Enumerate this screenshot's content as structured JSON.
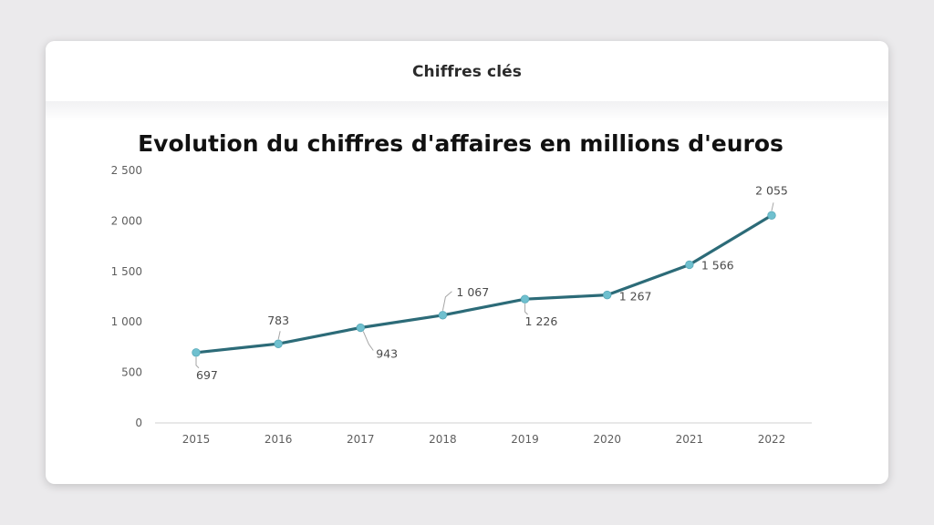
{
  "header": {
    "title": "Chiffres clés"
  },
  "colors": {
    "line": "#2c6b78",
    "marker": "#6fc0cf",
    "axis": "#d9d9d9",
    "leader": "#a6a6a6"
  },
  "chart_data": {
    "type": "line",
    "title": "Evolution du chiffres d'affaires en millions d'euros",
    "xlabel": "",
    "ylabel": "",
    "categories": [
      "2015",
      "2016",
      "2017",
      "2018",
      "2019",
      "2020",
      "2021",
      "2022"
    ],
    "values": [
      697,
      783,
      943,
      1067,
      1226,
      1267,
      1566,
      2055
    ],
    "data_labels": [
      "697",
      "783",
      "943",
      "1 067",
      "1 226",
      "1 267",
      "1 566",
      "2 055"
    ],
    "ylim": [
      0,
      2500
    ],
    "yticks": [
      0,
      500,
      1000,
      1500,
      2000,
      2500
    ],
    "ytick_labels": [
      "0",
      "500",
      "1 000",
      "1 500",
      "2 000",
      "2 500"
    ],
    "grid": false,
    "legend": "none"
  }
}
